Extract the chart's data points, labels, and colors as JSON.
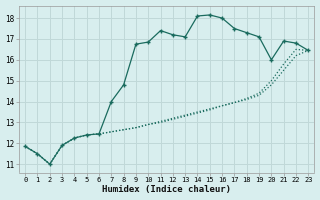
{
  "xlabel": "Humidex (Indice chaleur)",
  "bg_color": "#d8eeee",
  "grid_color": "#c0d8d8",
  "line_color": "#1a6b5e",
  "xlim": [
    -0.5,
    23.5
  ],
  "ylim": [
    10.6,
    18.6
  ],
  "xticks": [
    0,
    1,
    2,
    3,
    4,
    5,
    6,
    7,
    8,
    9,
    10,
    11,
    12,
    13,
    14,
    15,
    16,
    17,
    18,
    19,
    20,
    21,
    22,
    23
  ],
  "yticks": [
    11,
    12,
    13,
    14,
    15,
    16,
    17,
    18
  ],
  "line1_x": [
    0,
    1,
    2,
    3,
    4,
    5,
    6,
    7,
    8,
    9,
    10,
    11,
    12,
    13,
    14,
    15,
    16,
    17,
    18,
    19,
    20,
    21,
    22,
    23
  ],
  "line1_y": [
    11.85,
    11.5,
    11.0,
    11.9,
    12.25,
    12.4,
    12.45,
    14.0,
    14.8,
    16.75,
    16.85,
    17.4,
    17.2,
    17.1,
    18.1,
    18.15,
    18.0,
    17.5,
    17.3,
    17.1,
    16.0,
    16.9,
    16.8,
    16.45
  ],
  "line2_x": [
    0,
    1,
    2,
    3,
    4,
    5,
    6,
    7,
    8,
    9,
    10,
    11,
    12,
    13,
    14,
    15,
    16,
    17,
    18,
    19,
    20,
    21,
    22,
    23
  ],
  "line2_y": [
    11.85,
    11.5,
    11.0,
    11.9,
    12.25,
    12.4,
    12.45,
    12.55,
    12.65,
    12.75,
    12.9,
    13.05,
    13.2,
    13.35,
    13.5,
    13.65,
    13.8,
    13.95,
    14.1,
    14.3,
    14.8,
    15.5,
    16.2,
    16.45
  ],
  "line3_x": [
    0,
    1,
    2,
    3,
    4,
    5,
    6,
    7,
    8,
    9,
    10,
    11,
    12,
    13,
    14,
    15,
    16,
    17,
    18,
    19,
    20,
    21,
    22,
    23
  ],
  "line3_y": [
    11.85,
    11.5,
    11.0,
    11.9,
    12.25,
    12.4,
    12.45,
    12.55,
    12.65,
    12.75,
    12.9,
    13.0,
    13.15,
    13.3,
    13.45,
    13.6,
    13.8,
    13.95,
    14.15,
    14.4,
    15.0,
    15.8,
    16.5,
    16.45
  ],
  "marker_size": 3.5,
  "linewidth": 0.9
}
